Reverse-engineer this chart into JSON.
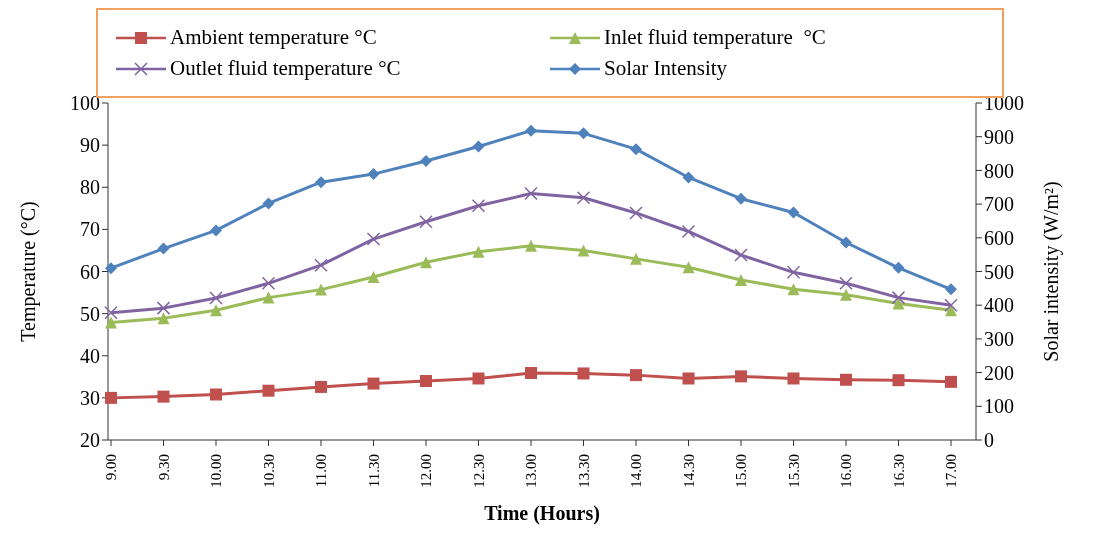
{
  "chart_data": {
    "type": "line",
    "xlabel": "Time (Hours)",
    "ylabel": "Temperature (°C)",
    "y2label": "Solar intensity (W/m²)",
    "categories": [
      "9.00",
      "9.30",
      "10.00",
      "10.30",
      "11.00",
      "11.30",
      "12.00",
      "12.30",
      "13.00",
      "13.30",
      "14.00",
      "14.30",
      "15.00",
      "15.30",
      "16.00",
      "16.30",
      "17.00"
    ],
    "ylim": [
      20,
      100
    ],
    "yticks": [
      20,
      30,
      40,
      50,
      60,
      70,
      80,
      90,
      100
    ],
    "y2lim": [
      0,
      1000
    ],
    "y2ticks": [
      0,
      100,
      200,
      300,
      400,
      500,
      600,
      700,
      800,
      900,
      1000
    ],
    "legend": "top",
    "line_style": "solid",
    "series": [
      {
        "name": "Ambient temperature °C",
        "color": "#c0504d",
        "marker": "square",
        "values": [
          30.0,
          30.3,
          30.8,
          31.7,
          32.6,
          33.4,
          34.0,
          34.6,
          35.9,
          35.8,
          35.4,
          34.6,
          35.1,
          34.6,
          34.3,
          34.2,
          33.8
        ]
      },
      {
        "name": "Inlet fluid temperature  °C",
        "color": "#9bbb59",
        "marker": "triangle",
        "values": [
          47.9,
          48.9,
          50.8,
          53.8,
          55.7,
          58.7,
          62.2,
          64.7,
          66.1,
          65.0,
          63.0,
          61.0,
          58.0,
          55.8,
          54.5,
          52.4,
          50.8
        ]
      },
      {
        "name": "Outlet fluid temperature °C",
        "color": "#8064a2",
        "marker": "cross",
        "values": [
          50.2,
          51.3,
          53.7,
          57.2,
          61.5,
          67.7,
          71.8,
          75.6,
          78.5,
          77.5,
          73.9,
          69.5,
          63.9,
          59.8,
          57.2,
          53.8,
          52.0
        ]
      },
      {
        "name": "Solar Intensity",
        "color": "#4f81bd",
        "marker": "diamond",
        "axis": "y2",
        "values": [
          510,
          568,
          622,
          702,
          765,
          789,
          828,
          871,
          918,
          910,
          863,
          779,
          716,
          675,
          586,
          511,
          447
        ]
      }
    ]
  }
}
